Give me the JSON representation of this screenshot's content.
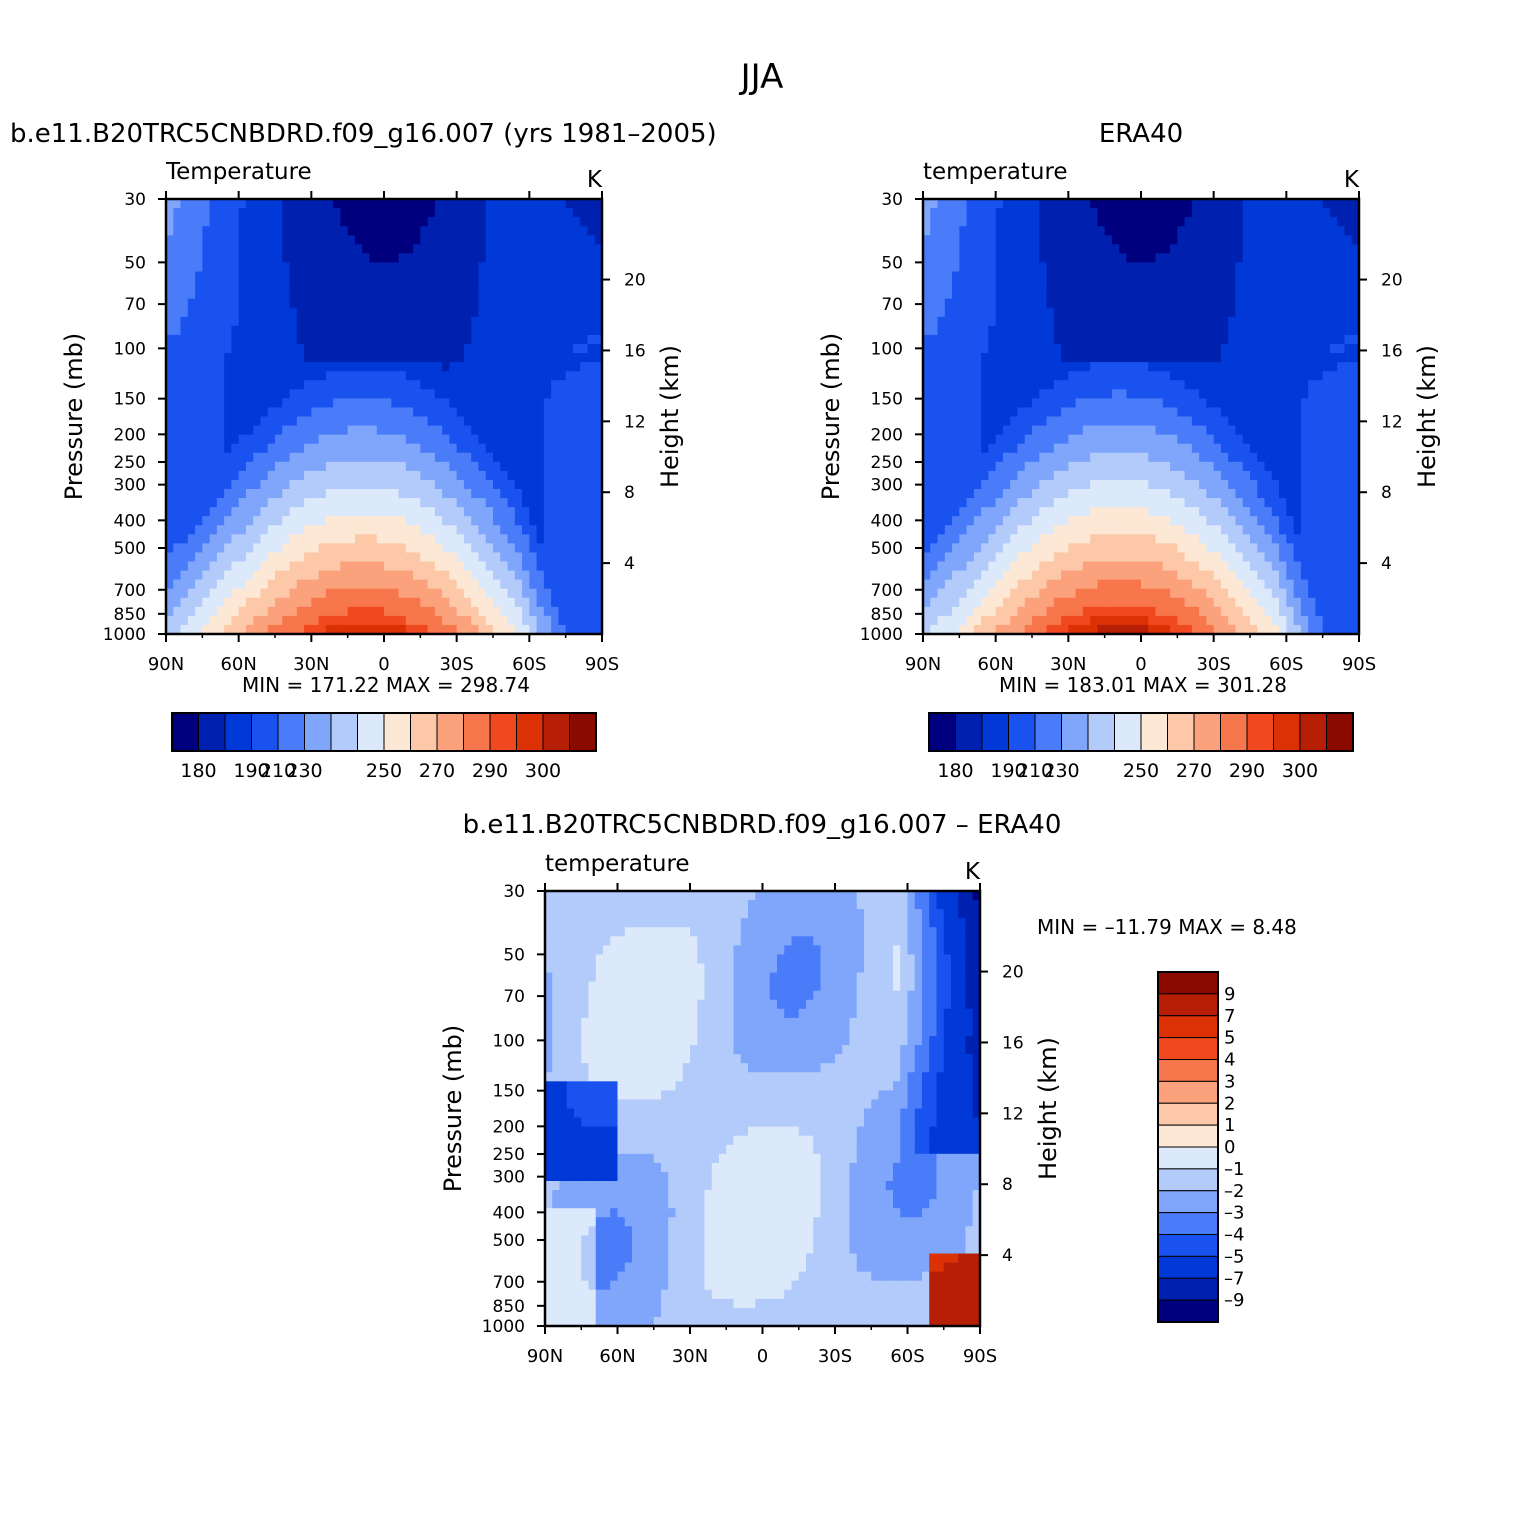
{
  "figure": {
    "title": "JJA"
  },
  "chart_data": [
    {
      "type": "heatmap",
      "title": "b.e11.B20TRC5CNBDRD.f09_g16.007 (yrs 1981–2005)",
      "variable_label": "Temperature",
      "units_label": "K",
      "xlabel": "",
      "ylabel": "Pressure  (mb)",
      "ylabel_right": "Height  (km)",
      "x_ticks": [
        "90N",
        "60N",
        "30N",
        "0",
        "30S",
        "60S",
        "90S"
      ],
      "y_ticks": [
        "30",
        "50",
        "70",
        "100",
        "150",
        "200",
        "250",
        "300",
        "400",
        "500",
        "700",
        "850",
        "1000"
      ],
      "y_ticks_right": [
        "20",
        "16",
        "12",
        "8",
        "4"
      ],
      "xlim": [
        90,
        -90
      ],
      "ylim": [
        1000,
        30
      ],
      "y_scale": "log",
      "stats": "MIN =  171.22   MAX =  298.74",
      "min": 171.22,
      "max": 298.74,
      "colorbar": {
        "orientation": "horizontal",
        "labels": [
          "180",
          "190",
          "210",
          "230",
          "250",
          "270",
          "290",
          "300"
        ]
      }
    },
    {
      "type": "heatmap",
      "title": "ERA40",
      "variable_label": "temperature",
      "units_label": "K",
      "xlabel": "",
      "ylabel": "Pressure  (mb)",
      "ylabel_right": "Height  (km)",
      "x_ticks": [
        "90N",
        "60N",
        "30N",
        "0",
        "30S",
        "60S",
        "90S"
      ],
      "y_ticks": [
        "30",
        "50",
        "70",
        "100",
        "150",
        "200",
        "250",
        "300",
        "400",
        "500",
        "700",
        "850",
        "1000"
      ],
      "y_ticks_right": [
        "20",
        "16",
        "12",
        "8",
        "4"
      ],
      "xlim": [
        90,
        -90
      ],
      "ylim": [
        1000,
        30
      ],
      "y_scale": "log",
      "stats": "MIN =  183.01   MAX =  301.28",
      "min": 183.01,
      "max": 301.28,
      "colorbar": {
        "orientation": "horizontal",
        "labels": [
          "180",
          "190",
          "210",
          "230",
          "250",
          "270",
          "290",
          "300"
        ]
      }
    },
    {
      "type": "heatmap",
      "title": "b.e11.B20TRC5CNBDRD.f09_g16.007 – ERA40",
      "variable_label": "temperature",
      "units_label": "K",
      "xlabel": "",
      "ylabel": "Pressure  (mb)",
      "ylabel_right": "Height  (km)",
      "x_ticks": [
        "90N",
        "60N",
        "30N",
        "0",
        "30S",
        "60S",
        "90S"
      ],
      "y_ticks": [
        "30",
        "50",
        "70",
        "100",
        "150",
        "200",
        "250",
        "300",
        "400",
        "500",
        "700",
        "850",
        "1000"
      ],
      "y_ticks_right": [
        "20",
        "16",
        "12",
        "8",
        "4"
      ],
      "xlim": [
        90,
        -90
      ],
      "ylim": [
        1000,
        30
      ],
      "y_scale": "log",
      "stats": "MIN = –11.79   MAX =    8.48",
      "min": -11.79,
      "max": 8.48,
      "colorbar": {
        "orientation": "vertical",
        "labels": [
          "9",
          "7",
          "5",
          "4",
          "3",
          "2",
          "1",
          "0",
          "–1",
          "–2",
          "–3",
          "–4",
          "–5",
          "–7",
          "–9"
        ]
      }
    }
  ],
  "colors": {
    "palette": [
      "#00007f",
      "#0020b0",
      "#0039d8",
      "#1a52f0",
      "#4a7cfa",
      "#7fa6fa",
      "#b3cbfa",
      "#dbe9fa",
      "#fde8d5",
      "#fcc8a8",
      "#fba27c",
      "#f8764c",
      "#f0491f",
      "#dc3005",
      "#b61f06",
      "#8a0a00"
    ],
    "palette_diff": [
      "#8a0a00",
      "#b61f06",
      "#dc3005",
      "#f0491f",
      "#f8764c",
      "#fba27c",
      "#fcc8a8",
      "#fde8d5",
      "#dbe9fa",
      "#b3cbfa",
      "#7fa6fa",
      "#4a7cfa",
      "#1a52f0",
      "#0039d8",
      "#0020b0",
      "#00007f"
    ]
  }
}
